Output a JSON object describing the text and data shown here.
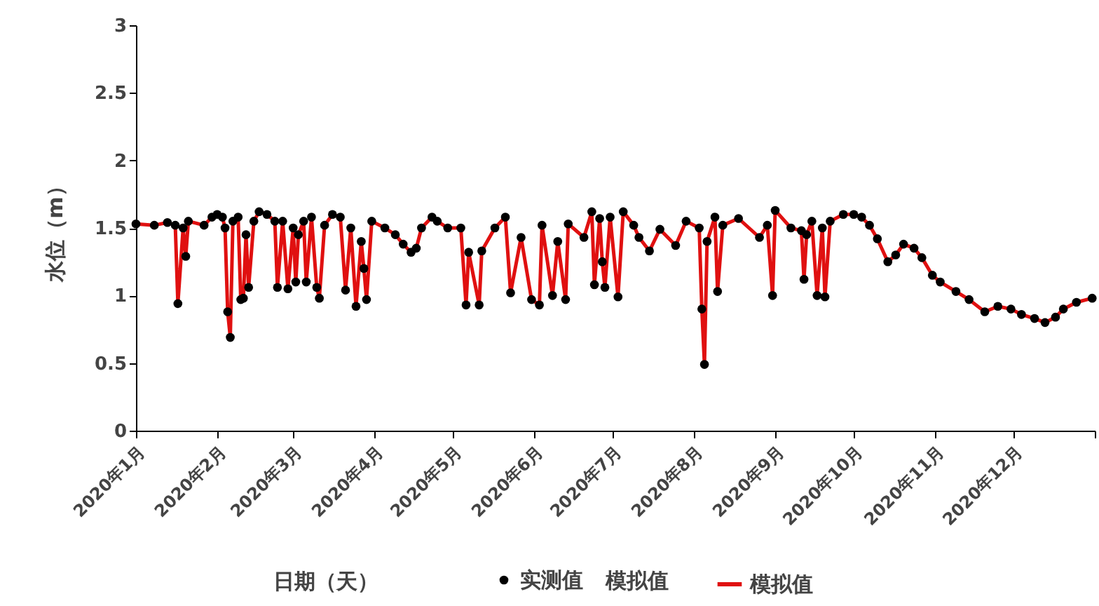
{
  "chart_data": {
    "type": "scatter",
    "xlabel": "日期（天）",
    "ylabel": "水位（m）",
    "x": [
      "2020-01-01",
      "2020-01-08",
      "2020-01-13",
      "2020-01-16",
      "2020-01-17",
      "2020-01-19",
      "2020-01-20",
      "2020-01-21",
      "2020-01-27",
      "2020-01-30",
      "2020-02-01",
      "2020-02-03",
      "2020-02-04",
      "2020-02-05",
      "2020-02-06",
      "2020-02-07",
      "2020-02-09",
      "2020-02-10",
      "2020-02-11",
      "2020-02-12",
      "2020-02-13",
      "2020-02-15",
      "2020-02-17",
      "2020-02-20",
      "2020-02-23",
      "2020-02-24",
      "2020-02-26",
      "2020-02-28",
      "2020-03-01",
      "2020-03-02",
      "2020-03-03",
      "2020-03-05",
      "2020-03-06",
      "2020-03-08",
      "2020-03-10",
      "2020-03-11",
      "2020-03-13",
      "2020-03-16",
      "2020-03-19",
      "2020-03-21",
      "2020-03-23",
      "2020-03-25",
      "2020-03-27",
      "2020-03-28",
      "2020-03-29",
      "2020-03-31",
      "2020-04-05",
      "2020-04-09",
      "2020-04-12",
      "2020-04-15",
      "2020-04-17",
      "2020-04-19",
      "2020-04-23",
      "2020-04-25",
      "2020-04-29",
      "2020-05-04",
      "2020-05-06",
      "2020-05-07",
      "2020-05-11",
      "2020-05-12",
      "2020-05-17",
      "2020-05-21",
      "2020-05-23",
      "2020-05-27",
      "2020-05-31",
      "2020-06-03",
      "2020-06-04",
      "2020-06-08",
      "2020-06-10",
      "2020-06-13",
      "2020-06-14",
      "2020-06-20",
      "2020-06-23",
      "2020-06-24",
      "2020-06-26",
      "2020-06-27",
      "2020-06-28",
      "2020-06-30",
      "2020-07-03",
      "2020-07-05",
      "2020-07-09",
      "2020-07-11",
      "2020-07-15",
      "2020-07-19",
      "2020-07-25",
      "2020-07-29",
      "2020-08-03",
      "2020-08-04",
      "2020-08-05",
      "2020-08-06",
      "2020-08-09",
      "2020-08-10",
      "2020-08-12",
      "2020-08-18",
      "2020-08-26",
      "2020-08-29",
      "2020-08-31",
      "2020-09-01",
      "2020-09-07",
      "2020-09-11",
      "2020-09-12",
      "2020-09-13",
      "2020-09-15",
      "2020-09-17",
      "2020-09-19",
      "2020-09-20",
      "2020-09-22",
      "2020-09-27",
      "2020-10-01",
      "2020-10-04",
      "2020-10-07",
      "2020-10-10",
      "2020-10-14",
      "2020-10-17",
      "2020-10-20",
      "2020-10-24",
      "2020-10-27",
      "2020-10-31",
      "2020-11-03",
      "2020-11-09",
      "2020-11-14",
      "2020-11-20",
      "2020-11-25",
      "2020-11-30",
      "2020-12-04",
      "2020-12-09",
      "2020-12-13",
      "2020-12-17",
      "2020-12-20",
      "2020-12-25",
      "2020-12-31"
    ],
    "series": [
      {
        "name": "实测值",
        "color": "#000000",
        "marker": "circle",
        "values": [
          1.53,
          1.52,
          1.54,
          1.52,
          0.94,
          1.5,
          1.29,
          1.55,
          1.52,
          1.58,
          1.6,
          1.58,
          1.5,
          0.88,
          0.69,
          1.55,
          1.58,
          0.97,
          0.98,
          1.45,
          1.06,
          1.55,
          1.62,
          1.6,
          1.55,
          1.06,
          1.55,
          1.05,
          1.5,
          1.1,
          1.45,
          1.55,
          1.1,
          1.58,
          1.06,
          0.98,
          1.52,
          1.6,
          1.58,
          1.04,
          1.5,
          0.92,
          1.4,
          1.2,
          0.97,
          1.55,
          1.5,
          1.45,
          1.38,
          1.32,
          1.35,
          1.5,
          1.58,
          1.55,
          1.5,
          1.5,
          0.93,
          1.32,
          0.93,
          1.33,
          1.5,
          1.58,
          1.02,
          1.43,
          0.97,
          0.93,
          1.52,
          1.0,
          1.4,
          0.97,
          1.53,
          1.43,
          1.62,
          1.08,
          1.57,
          1.25,
          1.06,
          1.58,
          0.99,
          1.62,
          1.52,
          1.43,
          1.33,
          1.49,
          1.37,
          1.55,
          1.5,
          0.9,
          0.49,
          1.4,
          1.58,
          1.03,
          1.52,
          1.57,
          1.43,
          1.52,
          1.0,
          1.63,
          1.5,
          1.48,
          1.12,
          1.45,
          1.55,
          1.0,
          1.5,
          0.99,
          1.55,
          1.6,
          1.6,
          1.58,
          1.52,
          1.42,
          1.25,
          1.3,
          1.38,
          1.35,
          1.28,
          1.15,
          1.1,
          1.03,
          0.97,
          0.88,
          0.92,
          0.9,
          0.86,
          0.83,
          0.8,
          0.84,
          0.9,
          0.95,
          0.98
        ]
      },
      {
        "name": "模拟值",
        "type": "line",
        "color": "#e01010",
        "marker": "none",
        "line_style": "solid",
        "values": [
          1.53,
          1.52,
          1.54,
          1.52,
          0.94,
          1.5,
          1.29,
          1.55,
          1.52,
          1.58,
          1.6,
          1.58,
          1.5,
          0.88,
          0.69,
          1.55,
          1.58,
          0.97,
          0.98,
          1.45,
          1.06,
          1.55,
          1.62,
          1.6,
          1.55,
          1.06,
          1.55,
          1.05,
          1.5,
          1.1,
          1.45,
          1.55,
          1.1,
          1.58,
          1.06,
          0.98,
          1.52,
          1.6,
          1.58,
          1.04,
          1.5,
          0.92,
          1.4,
          1.2,
          0.97,
          1.55,
          1.5,
          1.45,
          1.38,
          1.32,
          1.35,
          1.5,
          1.58,
          1.55,
          1.5,
          1.5,
          0.93,
          1.32,
          0.93,
          1.33,
          1.5,
          1.58,
          1.02,
          1.43,
          0.97,
          0.93,
          1.52,
          1.0,
          1.4,
          0.97,
          1.53,
          1.43,
          1.62,
          1.08,
          1.57,
          1.25,
          1.06,
          1.58,
          0.99,
          1.62,
          1.52,
          1.43,
          1.33,
          1.49,
          1.37,
          1.55,
          1.5,
          0.9,
          0.49,
          1.4,
          1.58,
          1.03,
          1.52,
          1.57,
          1.43,
          1.52,
          1.0,
          1.63,
          1.5,
          1.48,
          1.12,
          1.45,
          1.55,
          1.0,
          1.5,
          0.99,
          1.55,
          1.6,
          1.6,
          1.58,
          1.52,
          1.42,
          1.25,
          1.3,
          1.38,
          1.35,
          1.28,
          1.15,
          1.1,
          1.03,
          0.97,
          0.88,
          0.92,
          0.9,
          0.86,
          0.83,
          0.8,
          0.84,
          0.9,
          0.95,
          0.98
        ]
      }
    ],
    "xlim": [
      "2020-01-01",
      "2021-01-01"
    ],
    "xticks": [
      {
        "value": "2020-01-01",
        "label": "2020年1月"
      },
      {
        "value": "2020-02-01",
        "label": "2020年2月"
      },
      {
        "value": "2020-03-01",
        "label": "2020年3月"
      },
      {
        "value": "2020-04-01",
        "label": "2020年4月"
      },
      {
        "value": "2020-05-01",
        "label": "2020年5月"
      },
      {
        "value": "2020-06-01",
        "label": "2020年6月"
      },
      {
        "value": "2020-07-01",
        "label": "2020年7月"
      },
      {
        "value": "2020-08-01",
        "label": "2020年8月"
      },
      {
        "value": "2020-09-01",
        "label": "2020年9月"
      },
      {
        "value": "2020-10-01",
        "label": "2020年10月"
      },
      {
        "value": "2020-11-01",
        "label": "2020年11月"
      },
      {
        "value": "2020-12-01",
        "label": "2020年12月"
      },
      {
        "value": "2021-01-01",
        "label": null
      }
    ],
    "ylim": [
      0,
      3
    ],
    "yticks": [
      0,
      0.5,
      1,
      1.5,
      2,
      2.5,
      3
    ],
    "grid": false,
    "legend": "bottom",
    "annotations": [
      "模拟值"
    ]
  }
}
